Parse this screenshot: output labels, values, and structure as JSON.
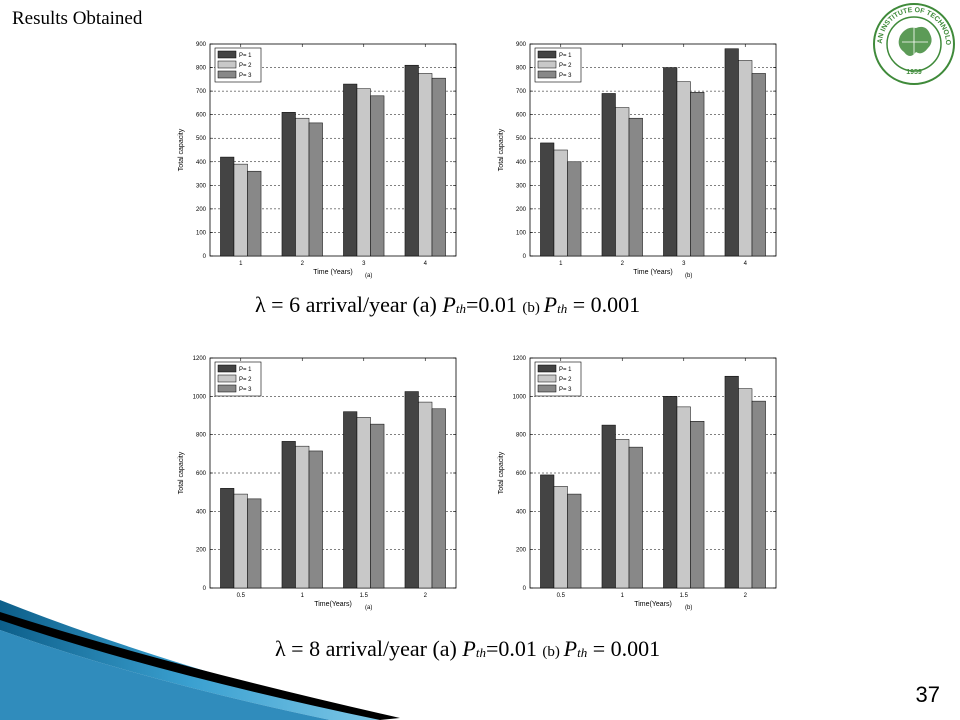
{
  "slide": {
    "title": "Results Obtained",
    "page_number": "37",
    "caption_top": {
      "lambda": "λ",
      "main": " = 6 arrival/year (a) ",
      "p1": "P",
      "sub1": "th",
      "eq1": "=0.01 ",
      "b": "(b) ",
      "p2": "P",
      "sub2": "th",
      "eq2": " = 0.001"
    },
    "caption_bottom": {
      "lambda": "λ",
      "main": " = 8 arrival/year (a) ",
      "p1": "P",
      "sub1": "th",
      "eq1": "=0.01 ",
      "b": "(b) ",
      "p2": "P",
      "sub2": "th",
      "eq2": " = 0.001"
    },
    "logo": {
      "text_top": "ASIAN INSTITUTE OF TECHNOLOGY",
      "year": "1959",
      "color": "#3f8a3a"
    }
  },
  "colors": {
    "series": [
      "#444444",
      "#c8c8c8",
      "#888888"
    ],
    "swoosh": [
      "#0d5f8a",
      "#3aa0d0",
      "#000000"
    ]
  },
  "chart_data": [
    {
      "type": "bar",
      "panel": "(a)",
      "categories": [
        "1",
        "2",
        "3",
        "4"
      ],
      "series": [
        {
          "name": "P= 1",
          "values": [
            420,
            610,
            730,
            810
          ]
        },
        {
          "name": "P= 2",
          "values": [
            390,
            585,
            710,
            775
          ]
        },
        {
          "name": "P= 3",
          "values": [
            360,
            565,
            680,
            755
          ]
        }
      ],
      "xlabel": "Time (Years)",
      "ylabel": "Total capacity",
      "ylim": [
        0,
        900
      ],
      "yticks": [
        0,
        100,
        200,
        300,
        400,
        500,
        600,
        700,
        800,
        900
      ],
      "grid": "dashed",
      "legend": "top-left"
    },
    {
      "type": "bar",
      "panel": "(b)",
      "categories": [
        "1",
        "2",
        "3",
        "4"
      ],
      "series": [
        {
          "name": "P= 1",
          "values": [
            480,
            690,
            800,
            880
          ]
        },
        {
          "name": "P= 2",
          "values": [
            450,
            630,
            740,
            830
          ]
        },
        {
          "name": "P= 3",
          "values": [
            400,
            585,
            695,
            775
          ]
        }
      ],
      "xlabel": "Time (Years)",
      "ylabel": "Total capacity",
      "ylim": [
        0,
        900
      ],
      "yticks": [
        0,
        100,
        200,
        300,
        400,
        500,
        600,
        700,
        800,
        900
      ],
      "grid": "dashed",
      "legend": "top-left"
    },
    {
      "type": "bar",
      "panel": "(a)",
      "categories": [
        "0.5",
        "1",
        "1.5",
        "2"
      ],
      "series": [
        {
          "name": "P= 1",
          "values": [
            520,
            765,
            920,
            1025
          ]
        },
        {
          "name": "P= 2",
          "values": [
            490,
            740,
            890,
            970
          ]
        },
        {
          "name": "P= 3",
          "values": [
            465,
            715,
            855,
            935
          ]
        }
      ],
      "xlabel": "Time(Years)",
      "ylabel": "Total capacity",
      "ylim": [
        0,
        1200
      ],
      "yticks": [
        0,
        200,
        400,
        600,
        800,
        1000,
        1200
      ],
      "grid": "dashed",
      "legend": "top-left"
    },
    {
      "type": "bar",
      "panel": "(b)",
      "categories": [
        "0.5",
        "1",
        "1.5",
        "2"
      ],
      "series": [
        {
          "name": "P= 1",
          "values": [
            590,
            850,
            1000,
            1105
          ]
        },
        {
          "name": "P= 2",
          "values": [
            530,
            775,
            945,
            1040
          ]
        },
        {
          "name": "P= 3",
          "values": [
            490,
            735,
            870,
            975
          ]
        }
      ],
      "xlabel": "Time(Years)",
      "ylabel": "Total capacity",
      "ylim": [
        0,
        1200
      ],
      "yticks": [
        0,
        200,
        400,
        600,
        800,
        1000,
        1200
      ],
      "grid": "dashed",
      "legend": "top-left"
    }
  ]
}
